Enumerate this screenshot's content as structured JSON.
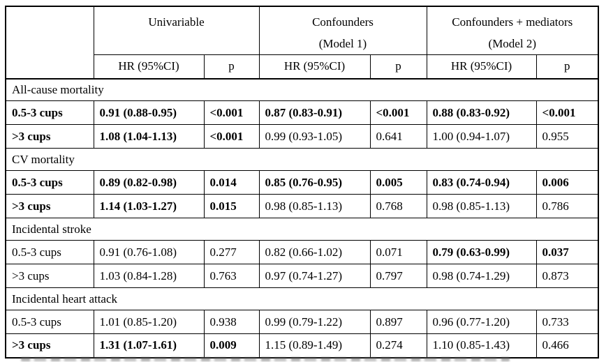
{
  "page": {
    "background_color": "#ffffff",
    "text_color": "#000000",
    "border_color": "#000000"
  },
  "table": {
    "corner_label": "",
    "groups": [
      {
        "line1": "Univariable",
        "line2": ""
      },
      {
        "line1": "Confounders",
        "line2": "(Model 1)"
      },
      {
        "line1": "Confounders + mediators",
        "line2": "(Model 2)"
      }
    ],
    "subheader": {
      "hr": "HR (95%CI)",
      "p": "p"
    },
    "sections": [
      {
        "title": "All-cause mortality",
        "rows": [
          {
            "label": "0.5-3 cups",
            "label_bold": true,
            "cells": [
              {
                "hr": "0.91 (0.88-0.95)",
                "p": "<0.001",
                "bold": true
              },
              {
                "hr": "0.87 (0.83-0.91)",
                "p": "<0.001",
                "bold": true
              },
              {
                "hr": "0.88 (0.83-0.92)",
                "p": "<0.001",
                "bold": true
              }
            ]
          },
          {
            "label": ">3 cups",
            "label_bold": true,
            "cells": [
              {
                "hr": "1.08 (1.04-1.13)",
                "p": "<0.001",
                "bold": true
              },
              {
                "hr": "0.99 (0.93-1.05)",
                "p": "0.641",
                "bold": false
              },
              {
                "hr": "1.00 (0.94-1.07)",
                "p": "0.955",
                "bold": false
              }
            ]
          }
        ]
      },
      {
        "title": "CV mortality",
        "rows": [
          {
            "label": "0.5-3 cups",
            "label_bold": true,
            "cells": [
              {
                "hr": "0.89 (0.82-0.98)",
                "p": "0.014",
                "bold": true
              },
              {
                "hr": "0.85 (0.76-0.95)",
                "p": "0.005",
                "bold": true
              },
              {
                "hr": "0.83 (0.74-0.94)",
                "p": "0.006",
                "bold": true
              }
            ]
          },
          {
            "label": ">3 cups",
            "label_bold": true,
            "cells": [
              {
                "hr": "1.14 (1.03-1.27)",
                "p": "0.015",
                "bold": true
              },
              {
                "hr": "0.98 (0.85-1.13)",
                "p": "0.768",
                "bold": false
              },
              {
                "hr": "0.98 (0.85-1.13)",
                "p": "0.786",
                "bold": false
              }
            ]
          }
        ]
      },
      {
        "title": "Incidental stroke",
        "rows": [
          {
            "label": "0.5-3 cups",
            "label_bold": false,
            "cells": [
              {
                "hr": "0.91 (0.76-1.08)",
                "p": "0.277",
                "bold": false
              },
              {
                "hr": "0.82 (0.66-1.02)",
                "p": "0.071",
                "bold": false
              },
              {
                "hr": "0.79 (0.63-0.99)",
                "p": "0.037",
                "bold": true
              }
            ]
          },
          {
            "label": ">3 cups",
            "label_bold": false,
            "cells": [
              {
                "hr": "1.03 (0.84-1.28)",
                "p": "0.763",
                "bold": false
              },
              {
                "hr": "0.97 (0.74-1.27)",
                "p": "0.797",
                "bold": false
              },
              {
                "hr": "0.98 (0.74-1.29)",
                "p": "0.873",
                "bold": false
              }
            ]
          }
        ]
      },
      {
        "title": "Incidental heart attack",
        "rows": [
          {
            "label": "0.5-3 cups",
            "label_bold": false,
            "cells": [
              {
                "hr": "1.01 (0.85-1.20)",
                "p": "0.938",
                "bold": false
              },
              {
                "hr": "0.99 (0.79-1.22)",
                "p": "0.897",
                "bold": false
              },
              {
                "hr": "0.96 (0.77-1.20)",
                "p": "0.733",
                "bold": false
              }
            ]
          },
          {
            "label": ">3 cups",
            "label_bold": true,
            "cells": [
              {
                "hr": "1.31 (1.07-1.61)",
                "p": "0.009",
                "bold": true
              },
              {
                "hr": "1.15 (0.89-1.49)",
                "p": "0.274",
                "bold": false
              },
              {
                "hr": "1.10 (0.85-1.43)",
                "p": "0.466",
                "bold": false
              }
            ]
          }
        ]
      }
    ]
  }
}
